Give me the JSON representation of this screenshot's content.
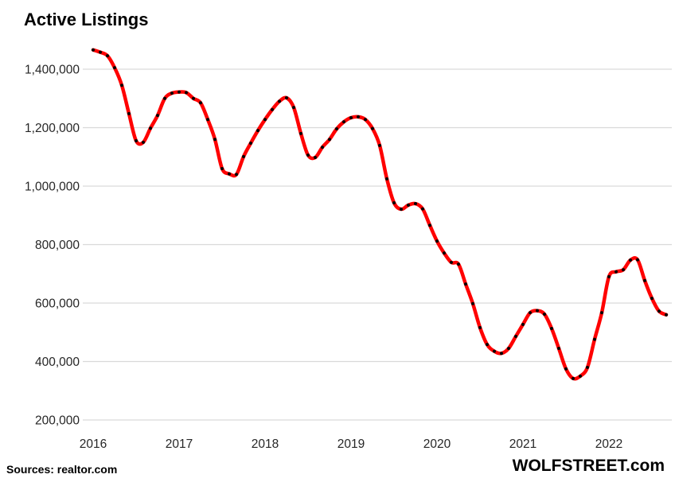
{
  "title": "Active Listings",
  "footer": {
    "sources": "Sources: realtor.com",
    "brand": "WOLFSTREET.com"
  },
  "colors": {
    "line": "#ff0000",
    "marker": "#000000",
    "grid": "#d9d9d9",
    "axis_text": "#262626",
    "title_text": "#000000",
    "background": "#ffffff"
  },
  "chart_data": {
    "type": "line",
    "title": "Active Listings",
    "xlabel": "",
    "ylabel": "",
    "legend": "none",
    "grid": "horizontal-only",
    "ylim": [
      200000,
      1500000
    ],
    "y_ticks": [
      {
        "value": 1400000,
        "label": "1,400,000"
      },
      {
        "value": 1200000,
        "label": "1,200,000"
      },
      {
        "value": 1000000,
        "label": "1,000,000"
      },
      {
        "value": 800000,
        "label": "800,000"
      },
      {
        "value": 600000,
        "label": "600,000"
      },
      {
        "value": 400000,
        "label": "400,000"
      },
      {
        "value": 200000,
        "label": "200,000"
      }
    ],
    "x_tick_years": [
      {
        "label": "2016",
        "month_index": 0
      },
      {
        "label": "2017",
        "month_index": 12
      },
      {
        "label": "2018",
        "month_index": 24
      },
      {
        "label": "2019",
        "month_index": 36
      },
      {
        "label": "2020",
        "month_index": 48
      },
      {
        "label": "2021",
        "month_index": 60
      },
      {
        "label": "2022",
        "month_index": 72
      }
    ],
    "series": [
      {
        "name": "Active listings (realtor.com, monthly)",
        "style": "red smoothed line with black point markers",
        "months": [
          "2016-07",
          "2016-08",
          "2016-09",
          "2016-10",
          "2016-11",
          "2016-12",
          "2017-01",
          "2017-02",
          "2017-03",
          "2017-04",
          "2017-05",
          "2017-06",
          "2017-07",
          "2017-08",
          "2017-09",
          "2017-10",
          "2017-11",
          "2017-12",
          "2018-01",
          "2018-02",
          "2018-03",
          "2018-04",
          "2018-05",
          "2018-06",
          "2018-07",
          "2018-08",
          "2018-09",
          "2018-10",
          "2018-11",
          "2018-12",
          "2019-01",
          "2019-02",
          "2019-03",
          "2019-04",
          "2019-05",
          "2019-06",
          "2019-07",
          "2019-08",
          "2019-09",
          "2019-10",
          "2019-11",
          "2019-12",
          "2020-01",
          "2020-02",
          "2020-03",
          "2020-04",
          "2020-05",
          "2020-06",
          "2020-07",
          "2020-08",
          "2020-09",
          "2020-10",
          "2020-11",
          "2020-12",
          "2021-01",
          "2021-02",
          "2021-03",
          "2021-04",
          "2021-05",
          "2021-06",
          "2021-07",
          "2021-08",
          "2021-09",
          "2021-10",
          "2021-11",
          "2021-12",
          "2022-01",
          "2022-02",
          "2022-03",
          "2022-04",
          "2022-05",
          "2022-06",
          "2022-07",
          "2022-08",
          "2022-09",
          "2022-10",
          "2022-11",
          "2022-12",
          "2023-01",
          "2023-02",
          "2023-03"
        ],
        "values": [
          1466000,
          1458000,
          1446000,
          1405000,
          1345000,
          1248000,
          1155000,
          1150000,
          1198000,
          1242000,
          1300000,
          1318000,
          1322000,
          1320000,
          1300000,
          1285000,
          1228000,
          1160000,
          1060000,
          1042000,
          1040000,
          1101000,
          1147000,
          1190000,
          1228000,
          1262000,
          1290000,
          1302000,
          1269000,
          1180000,
          1106000,
          1098000,
          1133000,
          1160000,
          1196000,
          1220000,
          1234000,
          1237000,
          1228000,
          1197000,
          1139000,
          1025000,
          943000,
          921000,
          935000,
          940000,
          922000,
          866000,
          812000,
          771000,
          739000,
          733000,
          665000,
          598000,
          516000,
          458000,
          435000,
          428000,
          445000,
          486000,
          527000,
          567000,
          574000,
          562000,
          513000,
          445000,
          375000,
          342000,
          350000,
          380000,
          476000,
          567000,
          690000,
          707000,
          714000,
          747000,
          748000,
          677000,
          616000,
          572000,
          560000
        ]
      }
    ]
  }
}
